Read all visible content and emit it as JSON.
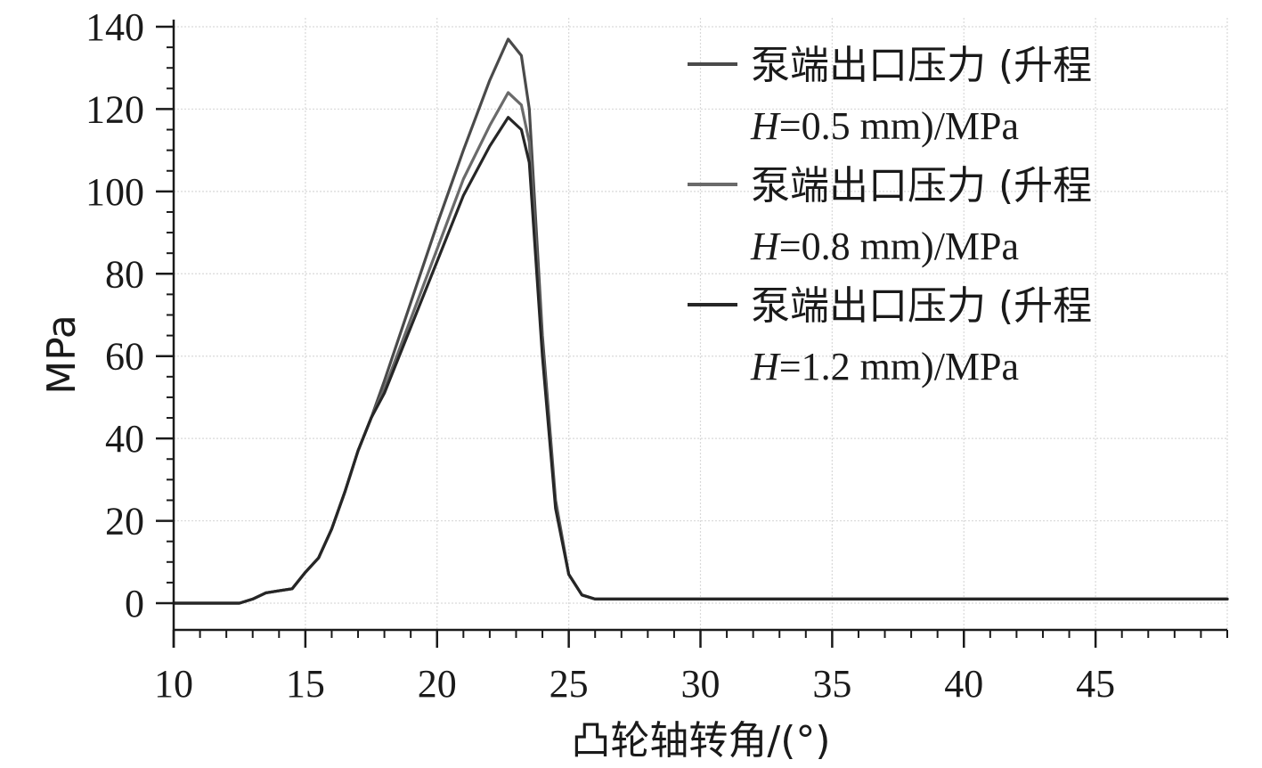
{
  "chart_data": {
    "type": "line",
    "title": "",
    "xlabel": "凸轮轴转角/(°)",
    "ylabel": "MPa",
    "xlim": [
      10,
      50
    ],
    "ylim": [
      0,
      140
    ],
    "xticks": [
      10,
      15,
      20,
      25,
      30,
      35,
      40,
      45
    ],
    "yticks": [
      0,
      20,
      40,
      60,
      80,
      100,
      120,
      140
    ],
    "grid": true,
    "legend_position": "top-right",
    "series": [
      {
        "name": "泵端出口压力 (升程 H=0.5 mm)/MPa",
        "name_line1": "泵端出口压力 (升程",
        "name_line2_italic": "H",
        "name_line2_rest": "=0.5 mm)/MPa",
        "color": "#4a4a4a",
        "x": [
          10,
          12.5,
          13,
          13.5,
          14,
          14.5,
          15,
          15.5,
          16,
          16.5,
          17,
          17.5,
          18,
          19,
          20,
          21,
          22,
          22.7,
          23.2,
          23.5,
          24,
          24.5,
          25,
          25.5,
          26,
          27,
          30,
          40,
          50
        ],
        "y": [
          0,
          0,
          1,
          2.5,
          3,
          3.5,
          7.5,
          11,
          18,
          27,
          37,
          45,
          54,
          73,
          92,
          110,
          127,
          137,
          133,
          120,
          65,
          25,
          7,
          2,
          1,
          1,
          1,
          1,
          1
        ]
      },
      {
        "name": "泵端出口压力 (升程 H=0.8 mm)/MPa",
        "name_line1": "泵端出口压力 (升程",
        "name_line2_italic": "H",
        "name_line2_rest": "=0.8 mm)/MPa",
        "color": "#6a6a6a",
        "x": [
          10,
          12.5,
          13,
          13.5,
          14,
          14.5,
          15,
          15.5,
          16,
          16.5,
          17,
          17.5,
          18,
          19,
          20,
          21,
          22,
          22.7,
          23.2,
          23.5,
          24,
          24.5,
          25,
          25.5,
          26,
          27,
          30,
          40,
          50
        ],
        "y": [
          0,
          0,
          1,
          2.5,
          3,
          3.5,
          7.5,
          11,
          18,
          27,
          37,
          45,
          52,
          69,
          86,
          103,
          116,
          124,
          121,
          112,
          62,
          24,
          7,
          2,
          1,
          1,
          1,
          1,
          1
        ]
      },
      {
        "name": "泵端出口压力 (升程 H=1.2 mm)/MPa",
        "name_line1": "泵端出口压力 (升程",
        "name_line2_italic": "H",
        "name_line2_rest": "=1.2 mm)/MPa",
        "color": "#262626",
        "x": [
          10,
          12.5,
          13,
          13.5,
          14,
          14.5,
          15,
          15.5,
          16,
          16.5,
          17,
          17.5,
          18,
          19,
          20,
          21,
          22,
          22.7,
          23.2,
          23.5,
          24,
          24.5,
          25,
          25.5,
          26,
          27,
          30,
          40,
          50
        ],
        "y": [
          0,
          0,
          1,
          2.5,
          3,
          3.5,
          7.5,
          11,
          18,
          27,
          37,
          45,
          51,
          67,
          83,
          99,
          111,
          118,
          115,
          107,
          60,
          23,
          7,
          2,
          1,
          1,
          1,
          1,
          1
        ]
      }
    ]
  }
}
